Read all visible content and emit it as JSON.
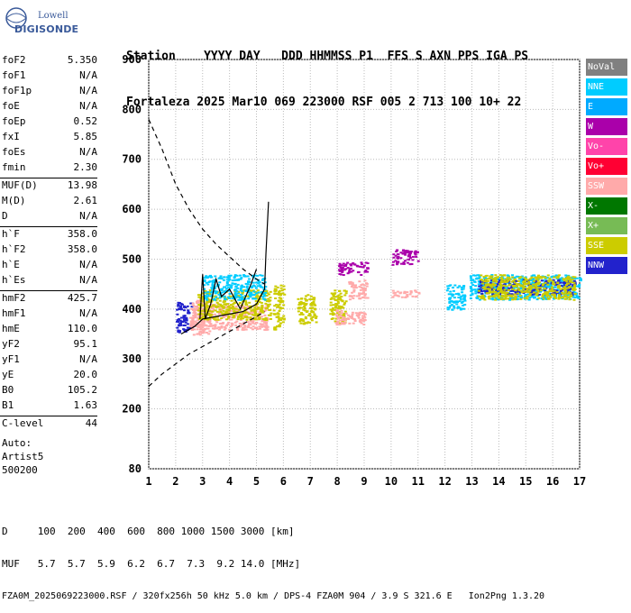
{
  "logo": {
    "line1": "Lowell",
    "line2": "DIGISONDE"
  },
  "header": {
    "line1": "Station    YYYY DAY   DDD HHMMSS P1  FFS S AXN PPS IGA PS",
    "line2": "Fortaleza 2025 Mar10 069 223000 RSF 005 2 713 100 10+ 22"
  },
  "params": [
    {
      "k": "foF2",
      "v": "5.350"
    },
    {
      "k": "foF1",
      "v": "N/A"
    },
    {
      "k": "foF1p",
      "v": "N/A"
    },
    {
      "k": "foE",
      "v": "N/A"
    },
    {
      "k": "foEp",
      "v": "0.52"
    },
    {
      "k": "fxI",
      "v": "5.85"
    },
    {
      "k": "foEs",
      "v": "N/A"
    },
    {
      "k": "fmin",
      "v": "2.30"
    },
    {
      "k": "MUF(D)",
      "v": "13.98"
    },
    {
      "k": "M(D)",
      "v": "2.61"
    },
    {
      "k": "D",
      "v": "N/A"
    },
    {
      "k": "h`F",
      "v": "358.0"
    },
    {
      "k": "h`F2",
      "v": "358.0"
    },
    {
      "k": "h`E",
      "v": "N/A"
    },
    {
      "k": "h`Es",
      "v": "N/A"
    },
    {
      "k": "hmF2",
      "v": "425.7"
    },
    {
      "k": "hmF1",
      "v": "N/A"
    },
    {
      "k": "hmE",
      "v": "110.0"
    },
    {
      "k": "yF2",
      "v": "95.1"
    },
    {
      "k": "yF1",
      "v": "N/A"
    },
    {
      "k": "yE",
      "v": "20.0"
    },
    {
      "k": "B0",
      "v": "105.2"
    },
    {
      "k": "B1",
      "v": "1.63"
    },
    {
      "k": "C-level",
      "v": "44"
    }
  ],
  "auto": {
    "line1": "Auto:",
    "line2": "Artist5",
    "line3": "500200"
  },
  "bottom": {
    "line1": "D     100  200  400  600  800 1000 1500 3000 [km]",
    "line2": "MUF   5.7  5.7  5.9  6.2  6.7  7.3  9.2 14.0 [MHz]",
    "line3": "FZA0M_2025069223000.RSF / 320fx256h 50 kHz 5.0 km / DPS-4 FZA0M 904 / 3.9 S 321.6 E   Ion2Png 1.3.20"
  },
  "legend": [
    {
      "label": "NoVal",
      "color": "#808080"
    },
    {
      "label": "NNE",
      "color": "#00ccff"
    },
    {
      "label": "E",
      "color": "#00aaff"
    },
    {
      "label": "W",
      "color": "#aa00aa"
    },
    {
      "label": "Vo-",
      "color": "#ff44aa"
    },
    {
      "label": "Vo+",
      "color": "#ff0033"
    },
    {
      "label": "SSW",
      "color": "#ffaaaa"
    },
    {
      "label": "X-",
      "color": "#007700"
    },
    {
      "label": "X+",
      "color": "#77bb55"
    },
    {
      "label": "SSE",
      "color": "#cccc00"
    },
    {
      "label": "NNW",
      "color": "#2222cc"
    }
  ],
  "chart_data": {
    "type": "scatter",
    "xlim": [
      1,
      17
    ],
    "ylim": [
      80,
      900
    ],
    "yticks": [
      80,
      200,
      300,
      400,
      500,
      600,
      700,
      800,
      900
    ],
    "xticks": [
      1,
      2,
      3,
      4,
      5,
      6,
      7,
      8,
      9,
      10,
      11,
      12,
      13,
      14,
      15,
      16,
      17
    ],
    "grid": true,
    "clusters": [
      {
        "x": [
          2.0,
          2.6
        ],
        "y": [
          355,
          415
        ],
        "color": "#2222cc"
      },
      {
        "x": [
          2.5,
          3.3
        ],
        "y": [
          350,
          420
        ],
        "color": "#ffaaaa"
      },
      {
        "x": [
          2.6,
          5.4
        ],
        "y": [
          360,
          410
        ],
        "color": "#ffaaaa"
      },
      {
        "x": [
          2.8,
          5.5
        ],
        "y": [
          380,
          440
        ],
        "color": "#cccc00"
      },
      {
        "x": [
          3.0,
          5.3
        ],
        "y": [
          420,
          470
        ],
        "color": "#00ccff"
      },
      {
        "x": [
          5.6,
          6.0
        ],
        "y": [
          360,
          450
        ],
        "color": "#cccc00"
      },
      {
        "x": [
          6.5,
          7.2
        ],
        "y": [
          370,
          430
        ],
        "color": "#cccc00"
      },
      {
        "x": [
          7.7,
          8.3
        ],
        "y": [
          370,
          440
        ],
        "color": "#cccc00"
      },
      {
        "x": [
          7.9,
          9.0
        ],
        "y": [
          370,
          400
        ],
        "color": "#ffaaaa"
      },
      {
        "x": [
          8.4,
          9.1
        ],
        "y": [
          420,
          460
        ],
        "color": "#ffaaaa"
      },
      {
        "x": [
          8.0,
          9.1
        ],
        "y": [
          470,
          495
        ],
        "color": "#aa00aa"
      },
      {
        "x": [
          10.0,
          11.0
        ],
        "y": [
          490,
          520
        ],
        "color": "#aa00aa"
      },
      {
        "x": [
          10.0,
          11.0
        ],
        "y": [
          425,
          440
        ],
        "color": "#ffaaaa"
      },
      {
        "x": [
          12.0,
          12.7
        ],
        "y": [
          400,
          450
        ],
        "color": "#00ccff"
      },
      {
        "x": [
          12.9,
          17.0
        ],
        "y": [
          420,
          470
        ],
        "color": "#00ccff"
      },
      {
        "x": [
          13.2,
          16.8
        ],
        "y": [
          430,
          460
        ],
        "color": "#2222cc"
      },
      {
        "x": [
          13.2,
          16.8
        ],
        "y": [
          420,
          470
        ],
        "color": "#cccc00"
      }
    ],
    "traces": {
      "dashed": [
        [
          1.0,
          780
        ],
        [
          1.5,
          720
        ],
        [
          2.0,
          650
        ],
        [
          2.5,
          600
        ],
        [
          3.0,
          560
        ],
        [
          3.5,
          530
        ],
        [
          4.0,
          505
        ],
        [
          4.5,
          480
        ],
        [
          5.0,
          460
        ],
        [
          5.3,
          450
        ]
      ],
      "dashed_lower": [
        [
          1.0,
          245
        ],
        [
          1.5,
          270
        ],
        [
          2.0,
          290
        ],
        [
          2.5,
          310
        ],
        [
          3.0,
          325
        ],
        [
          3.5,
          340
        ],
        [
          4.0,
          355
        ],
        [
          4.5,
          370
        ],
        [
          5.0,
          385
        ],
        [
          5.3,
          395
        ]
      ],
      "solid1": [
        [
          2.2,
          350
        ],
        [
          2.7,
          365
        ],
        [
          3.0,
          380
        ],
        [
          3.5,
          385
        ],
        [
          4.0,
          390
        ],
        [
          4.5,
          395
        ],
        [
          5.0,
          410
        ],
        [
          5.3,
          440
        ],
        [
          5.35,
          510
        ],
        [
          5.45,
          615
        ]
      ],
      "solid2": [
        [
          2.9,
          380
        ],
        [
          3.0,
          470
        ],
        [
          3.1,
          380
        ],
        [
          3.3,
          410
        ],
        [
          3.5,
          460
        ],
        [
          3.7,
          425
        ],
        [
          4.0,
          440
        ],
        [
          4.4,
          400
        ],
        [
          4.8,
          450
        ],
        [
          5.0,
          480
        ]
      ]
    }
  }
}
